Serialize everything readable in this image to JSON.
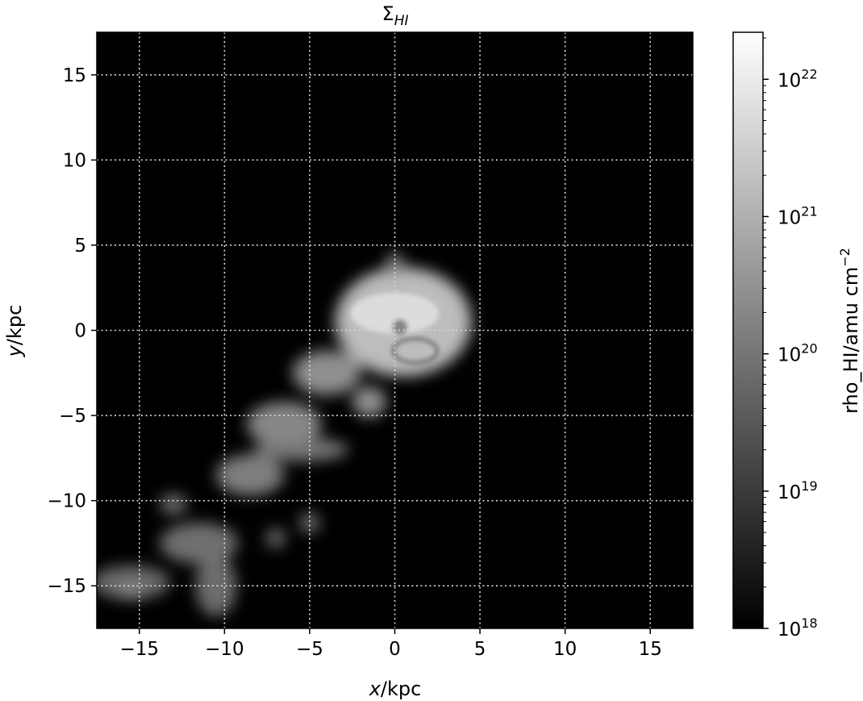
{
  "chart_data": {
    "type": "heatmap",
    "title": "Σ",
    "title_sub": "HI",
    "xlabel_var": "x",
    "xlabel_unit": "/kpc",
    "ylabel_var": "y",
    "ylabel_unit": "/kpc",
    "xlim": [
      -17.5,
      17.5
    ],
    "ylim": [
      -17.5,
      17.5
    ],
    "xticks": [
      -15,
      -10,
      -5,
      0,
      5,
      10,
      15
    ],
    "xtick_labels": [
      "−15",
      "−10",
      "−5",
      "0",
      "5",
      "10",
      "15"
    ],
    "yticks": [
      -15,
      -10,
      -5,
      0,
      5,
      10,
      15
    ],
    "ytick_labels": [
      "−15",
      "−10",
      "−5",
      "0",
      "5",
      "10",
      "15"
    ],
    "grid": true,
    "grid_style": "dotted",
    "colormap": "gray",
    "background_color": "#000000",
    "colorbar": {
      "label": "rho_HI/amu cm",
      "label_exponent": "−2",
      "scale": "log",
      "range": [
        1e+18,
        2.2e+22
      ],
      "ticks": [
        {
          "value": 1e+18,
          "base": "10",
          "exp": "18"
        },
        {
          "value": 1e+19,
          "base": "10",
          "exp": "19"
        },
        {
          "value": 1e+20,
          "base": "10",
          "exp": "20"
        },
        {
          "value": 1e+21,
          "base": "10",
          "exp": "21"
        },
        {
          "value": 1e+22,
          "base": "10",
          "exp": "22"
        }
      ]
    },
    "features": [
      {
        "name": "central disk",
        "cx": 0.5,
        "cy": 0.5,
        "rx": 4.0,
        "ry": 3.2,
        "level": 0.85
      },
      {
        "name": "northern spur",
        "cx": 0.0,
        "cy": 3.8,
        "rx": 0.5,
        "ry": 0.8,
        "level": 0.5
      },
      {
        "name": "south clump",
        "cx": -1.5,
        "cy": -4.2,
        "rx": 1.0,
        "ry": 0.9,
        "level": 0.6
      },
      {
        "name": "tail segment a",
        "cx": -4.0,
        "cy": -2.5,
        "rx": 2.0,
        "ry": 1.3,
        "level": 0.6
      },
      {
        "name": "tail segment b",
        "cx": -6.5,
        "cy": -5.5,
        "rx": 2.2,
        "ry": 1.3,
        "level": 0.55
      },
      {
        "name": "tail segment c",
        "cx": -8.5,
        "cy": -8.5,
        "rx": 2.0,
        "ry": 1.2,
        "level": 0.5
      },
      {
        "name": "tail segment d",
        "cx": -11.5,
        "cy": -12.5,
        "rx": 2.3,
        "ry": 1.2,
        "level": 0.42
      },
      {
        "name": "tail segment e",
        "cx": -15.5,
        "cy": -14.8,
        "rx": 2.3,
        "ry": 1.0,
        "level": 0.38
      },
      {
        "name": "inner stream",
        "cx": -5.5,
        "cy": -7.0,
        "rx": 2.8,
        "ry": 0.7,
        "level": 0.45
      },
      {
        "name": "lower branch",
        "cx": -10.5,
        "cy": -15.0,
        "rx": 1.2,
        "ry": 1.8,
        "level": 0.4
      },
      {
        "name": "clump x-5 y-11",
        "cx": -5.0,
        "cy": -11.3,
        "rx": 0.6,
        "ry": 0.6,
        "level": 0.4
      },
      {
        "name": "clump x-7 y-12",
        "cx": -7.0,
        "cy": -12.2,
        "rx": 0.6,
        "ry": 0.6,
        "level": 0.35
      },
      {
        "name": "clump x-13 y-10",
        "cx": -13.0,
        "cy": -10.2,
        "rx": 0.8,
        "ry": 0.6,
        "level": 0.4
      },
      {
        "name": "clump x-16 y-15",
        "cx": -15.5,
        "cy": -15.3,
        "rx": 0.7,
        "ry": 0.5,
        "level": 0.5
      }
    ]
  }
}
